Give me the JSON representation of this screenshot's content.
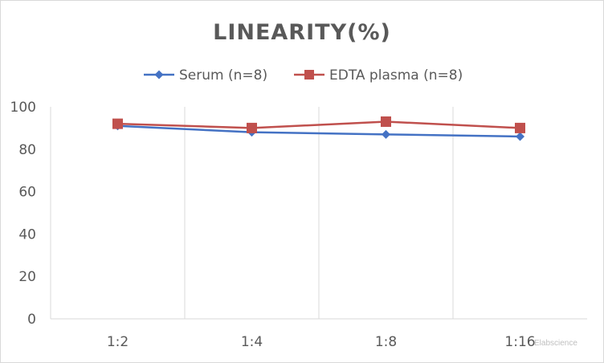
{
  "chart_data": {
    "type": "line",
    "title": "LINEARITY(%)",
    "xlabel": "",
    "ylabel": "",
    "categories": [
      "1:2",
      "1:4",
      "1:8",
      "1:16"
    ],
    "ylim": [
      0,
      100
    ],
    "yticks": [
      0,
      20,
      40,
      60,
      80,
      100
    ],
    "grid": "vertical",
    "legend": "top",
    "series": [
      {
        "name": "Serum (n=8)",
        "values": [
          91,
          88,
          87,
          86
        ],
        "color": "#4472c4",
        "marker": "diamond"
      },
      {
        "name": "EDTA plasma (n=8)",
        "values": [
          92,
          90,
          93,
          90
        ],
        "color": "#c0504d",
        "marker": "square"
      }
    ]
  },
  "watermark": "Elabscience"
}
